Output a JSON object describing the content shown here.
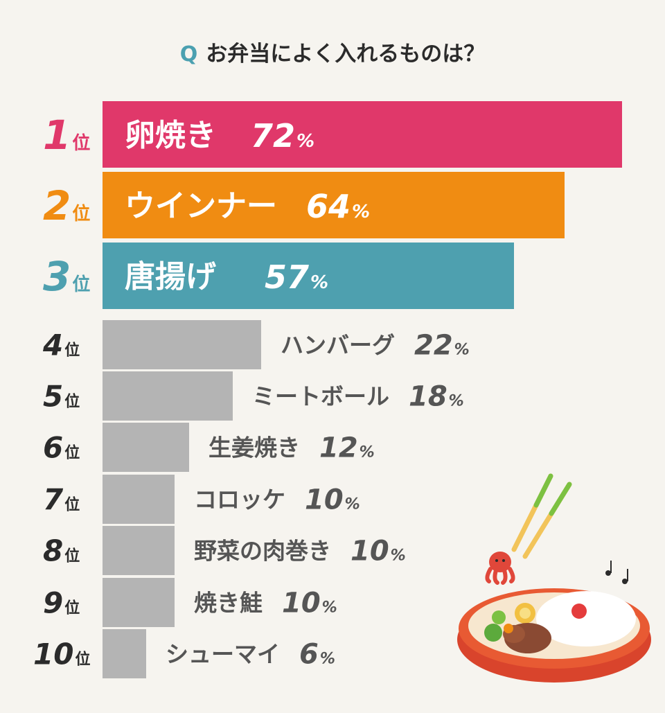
{
  "question": {
    "mark": "Q",
    "text": "お弁当によく入れるものは？"
  },
  "rank_suffix": "位",
  "percent_sign": "%",
  "colors": {
    "rank1": "#e0386a",
    "rank2": "#f08c12",
    "rank3": "#4ea0af",
    "other": "#b4b4b4",
    "text_dark": "#2b2b2b",
    "text_gray": "#555555",
    "background": "#f6f4ef"
  },
  "illustration": {
    "name": "bento-box-with-octopus-sausage-and-chopsticks"
  },
  "chart_data": {
    "type": "bar",
    "orientation": "horizontal",
    "title": "お弁当によく入れるものは？",
    "unit": "%",
    "categories": [
      "卵焼き",
      "ウインナー",
      "唐揚げ",
      "ハンバーグ",
      "ミートボール",
      "生姜焼き",
      "コロッケ",
      "野菜の肉巻き",
      "焼き鮭",
      "シューマイ"
    ],
    "ranks": [
      "1",
      "2",
      "3",
      "4",
      "5",
      "6",
      "7",
      "8",
      "9",
      "10"
    ],
    "values": [
      72,
      64,
      57,
      22,
      18,
      12,
      10,
      10,
      10,
      6
    ],
    "xlim": [
      0,
      72
    ],
    "grid": false
  }
}
